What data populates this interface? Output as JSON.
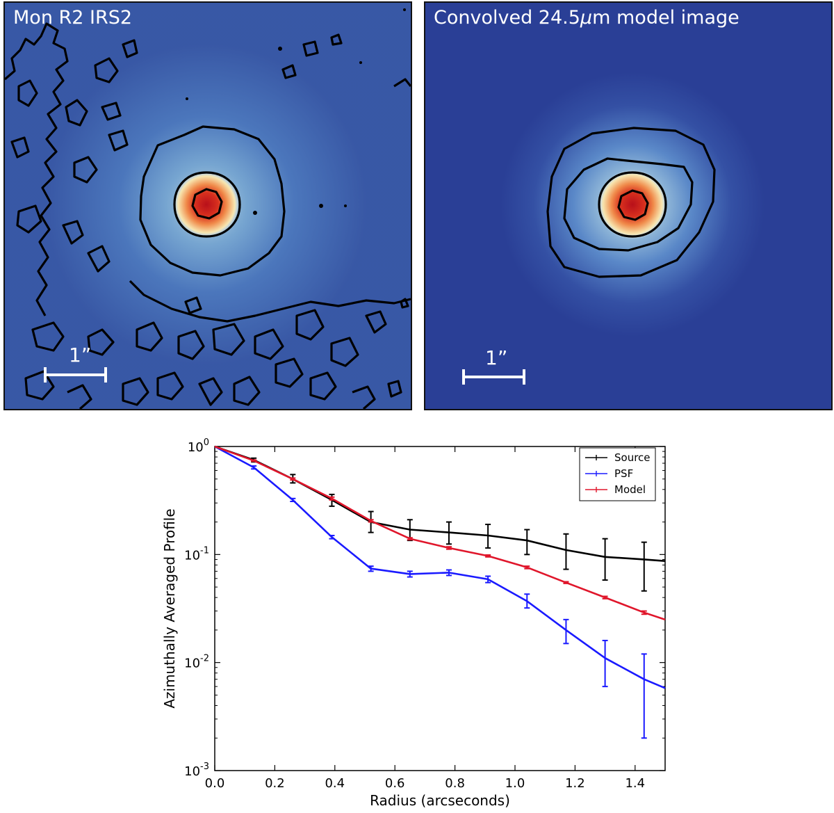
{
  "panels": {
    "left": {
      "title": "Mon R2 IRS2",
      "scale_label": "1”"
    },
    "right": {
      "title_prefix": "Convolved 24.5",
      "title_mu": "μ",
      "title_suffix": "m model image",
      "scale_label": "1”"
    }
  },
  "colors": {
    "source": "#000000",
    "psf": "#1a1aff",
    "model": "#e0162b",
    "image_bg": "#2a3f96",
    "image_glow": "#6a9ad0",
    "core": "#c9141a"
  },
  "chart_data": {
    "type": "line",
    "yscale": "log",
    "xlabel": "Radius (arcseconds)",
    "ylabel": "Azimuthally Averaged Profile",
    "xlim": [
      0.0,
      1.5
    ],
    "ylim": [
      0.001,
      1.0
    ],
    "x_ticks": [
      "0.0",
      "0.2",
      "0.4",
      "0.6",
      "0.8",
      "1.0",
      "1.2",
      "1.4"
    ],
    "y_ticks": [
      {
        "base": "10",
        "exp": "0"
      },
      {
        "base": "10",
        "exp": "-1"
      },
      {
        "base": "10",
        "exp": "-2"
      },
      {
        "base": "10",
        "exp": "-3"
      }
    ],
    "legend_position": "top-right",
    "series": [
      {
        "name": "Source",
        "color_key": "source",
        "x": [
          0.0,
          0.13,
          0.26,
          0.39,
          0.52,
          0.65,
          0.78,
          0.91,
          1.04,
          1.17,
          1.3,
          1.43,
          1.5
        ],
        "y": [
          1.0,
          0.75,
          0.5,
          0.32,
          0.2,
          0.17,
          0.16,
          0.15,
          0.135,
          0.11,
          0.095,
          0.09,
          0.087
        ],
        "err_low": [
          1.0,
          0.72,
          0.46,
          0.28,
          0.16,
          0.135,
          0.125,
          0.115,
          0.1,
          0.073,
          0.058,
          0.046,
          null
        ],
        "err_high": [
          1.0,
          0.78,
          0.55,
          0.36,
          0.25,
          0.21,
          0.2,
          0.19,
          0.17,
          0.155,
          0.14,
          0.13,
          null
        ]
      },
      {
        "name": "PSF",
        "color_key": "psf",
        "x": [
          0.0,
          0.13,
          0.26,
          0.39,
          0.52,
          0.65,
          0.78,
          0.91,
          1.04,
          1.17,
          1.3,
          1.43,
          1.5
        ],
        "y": [
          1.0,
          0.64,
          0.32,
          0.145,
          0.074,
          0.066,
          0.068,
          0.059,
          0.037,
          0.02,
          0.011,
          0.007,
          0.0058
        ],
        "err_low": [
          1.0,
          0.62,
          0.31,
          0.14,
          0.07,
          0.062,
          0.064,
          0.055,
          0.032,
          0.015,
          0.006,
          0.002,
          null
        ],
        "err_high": [
          1.0,
          0.66,
          0.33,
          0.15,
          0.078,
          0.07,
          0.072,
          0.063,
          0.043,
          0.025,
          0.016,
          0.012,
          null
        ]
      },
      {
        "name": "Model",
        "color_key": "model",
        "x": [
          0.0,
          0.13,
          0.26,
          0.39,
          0.52,
          0.65,
          0.78,
          0.91,
          1.04,
          1.17,
          1.3,
          1.43,
          1.5
        ],
        "y": [
          1.0,
          0.74,
          0.5,
          0.33,
          0.205,
          0.14,
          0.115,
          0.097,
          0.076,
          0.055,
          0.04,
          0.029,
          0.025
        ],
        "err_low": [
          1.0,
          0.73,
          0.49,
          0.32,
          0.2,
          0.137,
          0.112,
          0.095,
          0.074,
          0.054,
          0.039,
          0.028,
          null
        ],
        "err_high": [
          1.0,
          0.75,
          0.51,
          0.34,
          0.21,
          0.143,
          0.118,
          0.099,
          0.078,
          0.056,
          0.041,
          0.03,
          null
        ]
      }
    ]
  }
}
